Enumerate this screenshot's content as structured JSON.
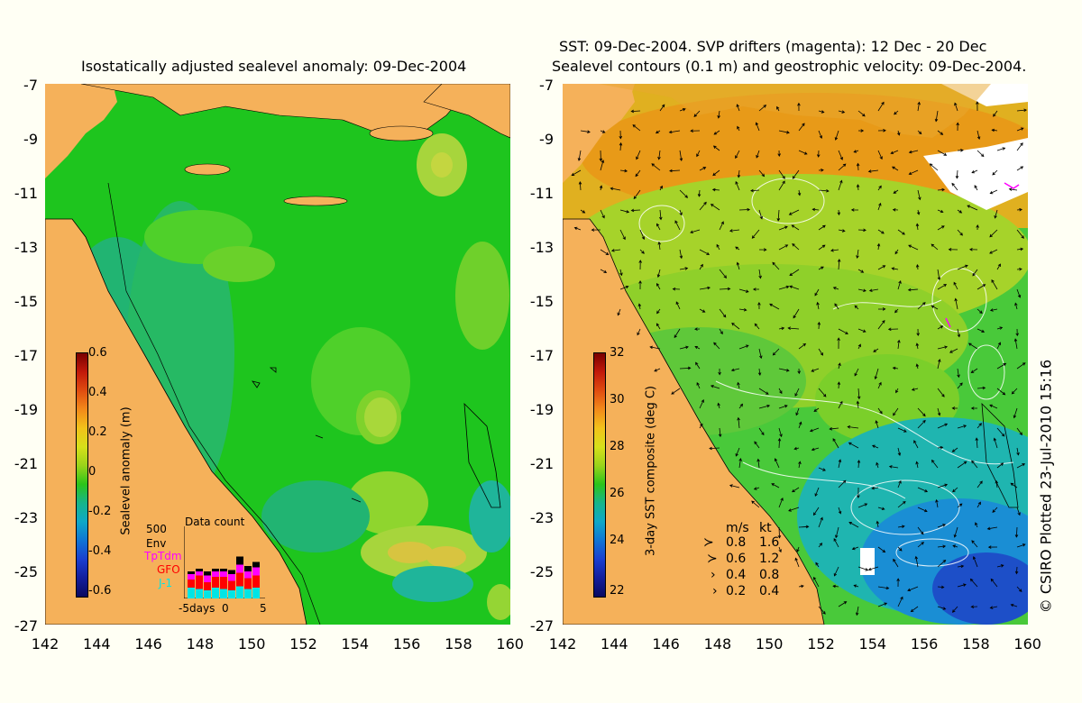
{
  "left_map": {
    "title": "Isostatically adjusted sealevel anomaly: 09-Dec-2004",
    "colorbar_label": "Sealevel anomaly (m)",
    "colorbar_ticks": [
      "0.6",
      "0.4",
      "0.2",
      "0",
      "-0.2",
      "-0.4",
      "-0.6"
    ],
    "data_count": {
      "title": "Data count",
      "scale_label": "500",
      "legend": [
        {
          "name": "Env",
          "color": "#000000"
        },
        {
          "name": "TpTdm",
          "color": "#ff00ff"
        },
        {
          "name": "GFO",
          "color": "#ff0000"
        },
        {
          "name": "J-1",
          "color": "#00e5e5"
        }
      ],
      "x_labels": [
        "-5",
        "days",
        "0",
        "5"
      ]
    }
  },
  "right_map": {
    "title_line1": "SST: 09-Dec-2004. SVP drifters (magenta): 12 Dec - 20 Dec",
    "title_line2": "Sealevel contours (0.1 m) and geostrophic velocity: 09-Dec-2004.",
    "colorbar_label": "3-day SST composite (deg C)",
    "colorbar_ticks": [
      "32",
      "30",
      "28",
      "26",
      "24",
      "22"
    ],
    "velocity_legend": {
      "header": [
        "m/s",
        "kt"
      ],
      "rows": [
        [
          "0.8",
          "1.6"
        ],
        [
          "0.6",
          "1.2"
        ],
        [
          "0.4",
          "0.8"
        ],
        [
          "0.2",
          "0.4"
        ]
      ]
    }
  },
  "axes": {
    "y_ticks": [
      "-7",
      "-9",
      "-11",
      "-13",
      "-15",
      "-17",
      "-19",
      "-21",
      "-23",
      "-25",
      "-27"
    ],
    "x_ticks": [
      "142",
      "144",
      "146",
      "148",
      "150",
      "152",
      "154",
      "156",
      "158",
      "160"
    ]
  },
  "credit": "© CSIRO Plotted 23-Jul-2010 15:16",
  "colors": {
    "land": "#f5b15a",
    "sla_base": "#1ec51e",
    "sst_base": "#3cc83c",
    "background": "#fffff4"
  }
}
